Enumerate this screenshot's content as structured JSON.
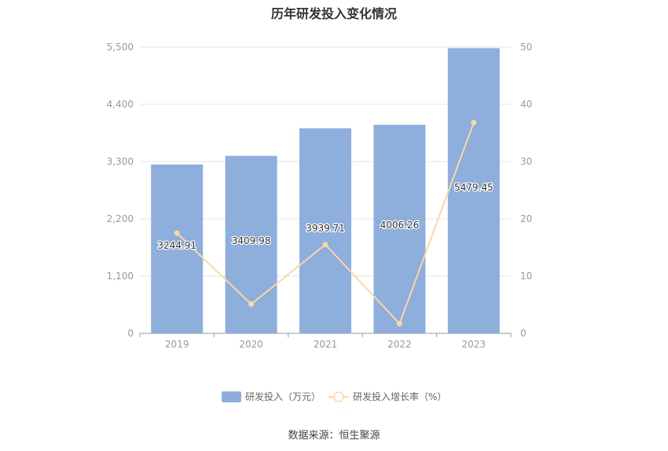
{
  "chart_data": {
    "type": "bar",
    "title": "历年研发投入变化情况",
    "categories": [
      "2019",
      "2020",
      "2021",
      "2022",
      "2023"
    ],
    "series": [
      {
        "name": "研发投入（万元）",
        "type": "bar",
        "axis": "left",
        "values": [
          3244.91,
          3409.98,
          3939.71,
          4006.26,
          5479.45
        ],
        "color": "#8eaedb"
      },
      {
        "name": "研发投入增长率（%）",
        "type": "line",
        "axis": "right",
        "values": [
          17.5,
          5.1,
          15.5,
          1.7,
          36.8
        ],
        "color": "#f9d8a6"
      }
    ],
    "y_left": {
      "min": 0,
      "max": 5500,
      "ticks": [
        "0",
        "1,100",
        "2,200",
        "3,300",
        "4,400",
        "5,500"
      ]
    },
    "y_right": {
      "min": 0,
      "max": 50,
      "ticks": [
        "0",
        "10",
        "20",
        "30",
        "40",
        "50"
      ]
    },
    "data_labels": [
      "3244.91",
      "3409.98",
      "3939.71",
      "4006.26",
      "5479.45"
    ],
    "grid": true,
    "legend": "bottom-center"
  },
  "source_text": "数据来源：恒生聚源"
}
